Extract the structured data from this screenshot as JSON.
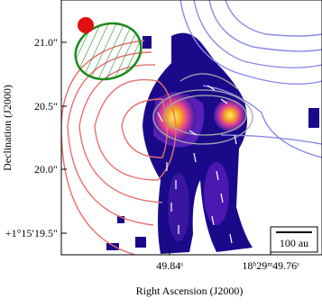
{
  "figure": {
    "xlabel": "Right Ascension (J2000)",
    "ylabel": "Declination (J2000)",
    "xticks": [
      "49.84ˢ",
      "18ʰ29ᵐ49.76ˢ"
    ],
    "yticks": [
      "21.0″",
      "20.5″",
      "20.0″",
      "+1°15′19.5″"
    ],
    "scalebar": "100 au"
  }
}
